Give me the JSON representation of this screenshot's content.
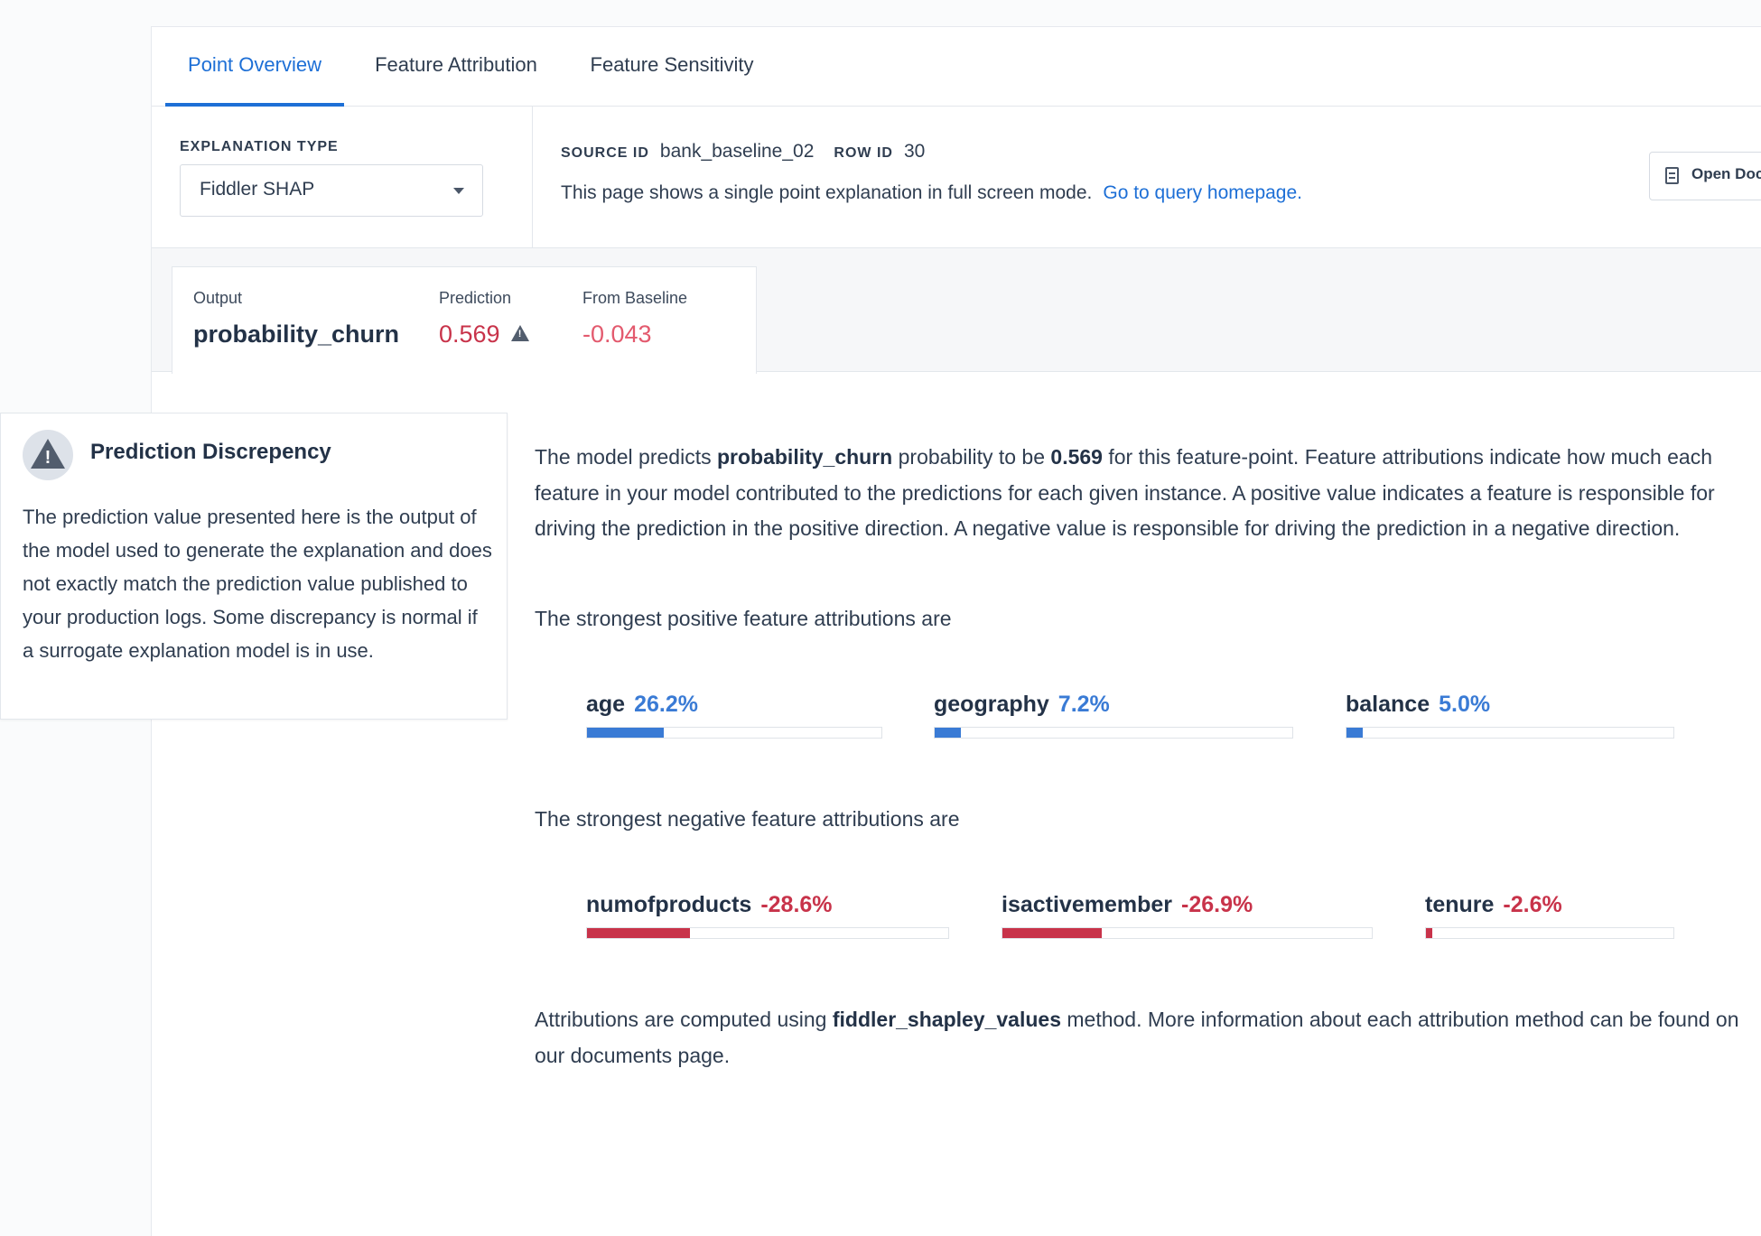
{
  "tabs": [
    {
      "label": "Point Overview",
      "active": true
    },
    {
      "label": "Feature Attribution",
      "active": false
    },
    {
      "label": "Feature Sensitivity",
      "active": false
    }
  ],
  "explanation": {
    "label": "EXPLANATION TYPE",
    "selected": "Fiddler SHAP"
  },
  "source": {
    "source_id_label": "SOURCE ID",
    "source_id": "bank_baseline_02",
    "row_id_label": "ROW ID",
    "row_id": "30",
    "description": "This page shows a single point explanation in full screen mode.",
    "link_text": "Go to query homepage."
  },
  "open_docs_label": "Open Docs",
  "output": {
    "output_label": "Output",
    "output_value": "probability_churn",
    "prediction_label": "Prediction",
    "prediction_value": "0.569",
    "baseline_label": "From Baseline",
    "baseline_value": "-0.043"
  },
  "tooltip": {
    "title": "Prediction Discrepency",
    "body": "The prediction value presented here is the output of the model used to generate the explanation and does not exactly match the prediction value published to your production logs. Some discrepancy is normal if a surrogate explanation model is in use."
  },
  "summary": {
    "p1_a": "The model predicts ",
    "p1_output": "probability_churn",
    "p1_b": " probability to be ",
    "p1_value": "0.569",
    "p1_c": " for this feature-point. Feature attributions indicate how much each feature in your model contributed to the predictions for each given instance. A positive value indicates a feature is responsible for driving the prediction in the positive direction. A negative value is responsible for driving the prediction in a negative direction.",
    "positive_heading": "The strongest positive feature attributions are",
    "negative_heading": "The strongest negative feature attributions are",
    "foot_a": "Attributions are computed using ",
    "foot_method": "fiddler_shapley_values",
    "foot_b": " method. More information about each attribution method can be found on our documents page."
  },
  "positive_attributions": [
    {
      "feature": "age",
      "value": "26.2%",
      "fill_fraction": 0.262
    },
    {
      "feature": "geography",
      "value": "7.2%",
      "fill_fraction": 0.072
    },
    {
      "feature": "balance",
      "value": "5.0%",
      "fill_fraction": 0.05
    }
  ],
  "negative_attributions": [
    {
      "feature": "numofproducts",
      "value": "-28.6%",
      "fill_fraction": 0.286
    },
    {
      "feature": "isactivemember",
      "value": "-26.9%",
      "fill_fraction": 0.269
    },
    {
      "feature": "tenure",
      "value": "-2.6%",
      "fill_fraction": 0.026
    }
  ],
  "colors": {
    "accent": "#1d6fd6",
    "positive": "#3a7bd5",
    "negative": "#c8334a"
  }
}
